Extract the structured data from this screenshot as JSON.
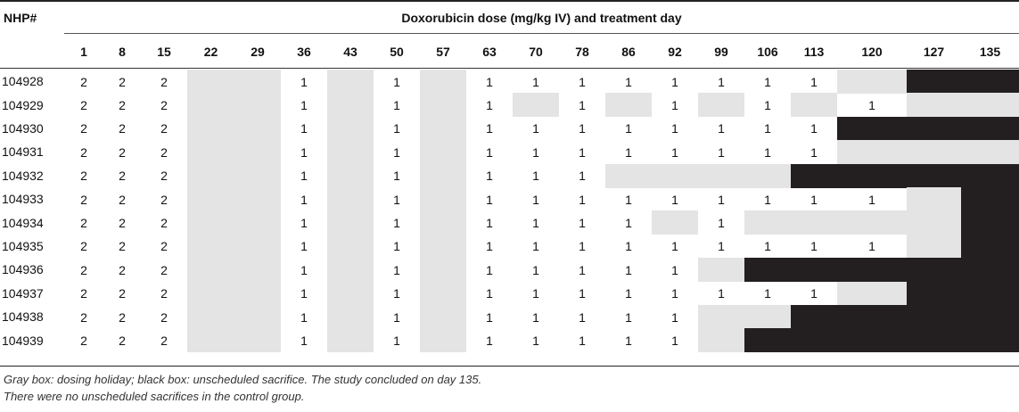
{
  "header": {
    "nhp_label": "NHP#",
    "title": "Doxorubicin dose (mg/kg IV) and treatment day"
  },
  "days": [
    "1",
    "8",
    "15",
    "22",
    "29",
    "36",
    "43",
    "50",
    "57",
    "63",
    "70",
    "78",
    "86",
    "92",
    "99",
    "106",
    "113",
    "120",
    "127",
    "135"
  ],
  "legend_codes": {
    "blank": "",
    "gray": "dosing holiday",
    "black": "unscheduled sacrifice"
  },
  "rows": [
    {
      "id": "104928",
      "cells": [
        "2",
        "2",
        "2",
        "G",
        "G",
        "1",
        "G",
        "1",
        "G",
        "1",
        "1",
        "1",
        "1",
        "1",
        "1",
        "1",
        "1",
        "G",
        "B",
        "B"
      ]
    },
    {
      "id": "104929",
      "cells": [
        "2",
        "2",
        "2",
        "G",
        "G",
        "1",
        "G",
        "1",
        "G",
        "1",
        "G",
        "1",
        "G",
        "1",
        "G",
        "1",
        "G",
        "1",
        "G",
        "G"
      ]
    },
    {
      "id": "104930",
      "cells": [
        "2",
        "2",
        "2",
        "G",
        "G",
        "1",
        "G",
        "1",
        "G",
        "1",
        "1",
        "1",
        "1",
        "1",
        "1",
        "1",
        "1",
        "B",
        "B",
        "B"
      ]
    },
    {
      "id": "104931",
      "cells": [
        "2",
        "2",
        "2",
        "G",
        "G",
        "1",
        "G",
        "1",
        "G",
        "1",
        "1",
        "1",
        "1",
        "1",
        "1",
        "1",
        "1",
        "G",
        "G",
        "G"
      ]
    },
    {
      "id": "104932",
      "cells": [
        "2",
        "2",
        "2",
        "G",
        "G",
        "1",
        "G",
        "1",
        "G",
        "1",
        "1",
        "1",
        "G",
        "G",
        "G",
        "G",
        "B",
        "B",
        "B",
        "B"
      ]
    },
    {
      "id": "104933",
      "cells": [
        "2",
        "2",
        "2",
        "G",
        "G",
        "1",
        "G",
        "1",
        "G",
        "1",
        "1",
        "1",
        "1",
        "1",
        "1",
        "1",
        "1",
        "1",
        "G",
        "B"
      ]
    },
    {
      "id": "104934",
      "cells": [
        "2",
        "2",
        "2",
        "G",
        "G",
        "1",
        "G",
        "1",
        "G",
        "1",
        "1",
        "1",
        "1",
        "G",
        "1",
        "G",
        "G",
        "G",
        "G",
        "B"
      ]
    },
    {
      "id": "104935",
      "cells": [
        "2",
        "2",
        "2",
        "G",
        "G",
        "1",
        "G",
        "1",
        "G",
        "1",
        "1",
        "1",
        "1",
        "1",
        "1",
        "1",
        "1",
        "1",
        "G",
        "B"
      ]
    },
    {
      "id": "104936",
      "cells": [
        "2",
        "2",
        "2",
        "G",
        "G",
        "1",
        "G",
        "1",
        "G",
        "1",
        "1",
        "1",
        "1",
        "1",
        "G",
        "B",
        "B",
        "B",
        "B",
        "B"
      ]
    },
    {
      "id": "104937",
      "cells": [
        "2",
        "2",
        "2",
        "G",
        "G",
        "1",
        "G",
        "1",
        "G",
        "1",
        "1",
        "1",
        "1",
        "1",
        "1",
        "1",
        "1",
        "G",
        "B",
        "B"
      ]
    },
    {
      "id": "104938",
      "cells": [
        "2",
        "2",
        "2",
        "G",
        "G",
        "1",
        "G",
        "1",
        "G",
        "1",
        "1",
        "1",
        "1",
        "1",
        "G",
        "G",
        "B",
        "B",
        "B",
        "B"
      ]
    },
    {
      "id": "104939",
      "cells": [
        "2",
        "2",
        "2",
        "G",
        "G",
        "1",
        "G",
        "1",
        "G",
        "1",
        "1",
        "1",
        "1",
        "1",
        "G",
        "B",
        "B",
        "B",
        "B",
        "B"
      ]
    }
  ],
  "footnotes": [
    "Gray box: dosing holiday; black box: unscheduled sacrifice. The study concluded on day 135.",
    "There were no unscheduled sacrifices in the control group."
  ]
}
